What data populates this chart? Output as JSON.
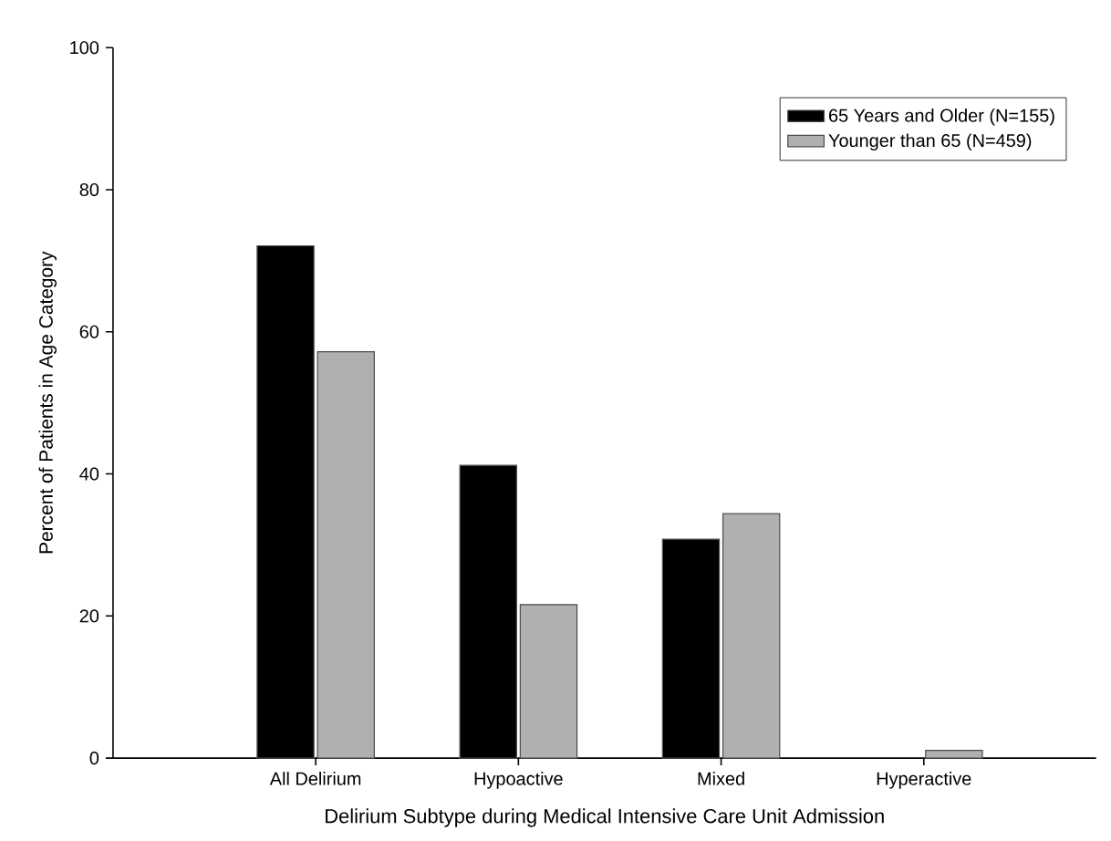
{
  "chart_data": {
    "type": "bar",
    "xlabel": "Delirium Subtype during Medical Intensive Care Unit Admission",
    "ylabel": "Percent of Patients in Age Category",
    "categories": [
      "All Delirium",
      "Hypoactive",
      "Mixed",
      "Hyperactive"
    ],
    "series": [
      {
        "name": "65 Years and Older (N=155)",
        "color": "#000000",
        "values": [
          72.1,
          41.2,
          30.8,
          0
        ]
      },
      {
        "name": "Younger than 65 (N=459)",
        "color": "#b0b0b0",
        "values": [
          57.2,
          21.6,
          34.4,
          1.1
        ]
      }
    ],
    "ylim": [
      0,
      100
    ],
    "yticks": [
      0,
      20,
      40,
      60,
      80,
      100
    ],
    "grid": false,
    "legend": "top right"
  }
}
